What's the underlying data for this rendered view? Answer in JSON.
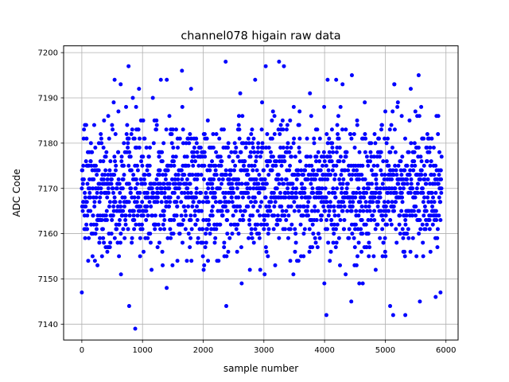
{
  "chart_data": {
    "type": "scatter",
    "title": "channel078 higain raw data",
    "xlabel": "sample number",
    "ylabel": "ADC Code",
    "xlim": [
      -300,
      6200
    ],
    "ylim": [
      7136.5,
      7201.5
    ],
    "x_ticks": [
      0,
      1000,
      2000,
      3000,
      4000,
      5000,
      6000
    ],
    "y_ticks": [
      7140,
      7150,
      7160,
      7170,
      7180,
      7190,
      7200
    ],
    "grid": true,
    "marker_color": "#0000ff",
    "series": [
      {
        "n_samples": 5930,
        "x_range": [
          0,
          5929
        ],
        "center": 7170,
        "typical_range": [
          7152,
          7188
        ],
        "outliers": [
          {
            "x": 880,
            "y": 7139
          },
          {
            "x": 780,
            "y": 7144
          },
          {
            "x": 2380,
            "y": 7144
          },
          {
            "x": 4030,
            "y": 7142
          },
          {
            "x": 5130,
            "y": 7142
          },
          {
            "x": 5330,
            "y": 7142
          },
          {
            "x": 5080,
            "y": 7144
          },
          {
            "x": 0,
            "y": 7147
          },
          {
            "x": 4440,
            "y": 7145
          },
          {
            "x": 5570,
            "y": 7145
          },
          {
            "x": 5830,
            "y": 7146
          },
          {
            "x": 5910,
            "y": 7147
          },
          {
            "x": 770,
            "y": 7197
          },
          {
            "x": 2370,
            "y": 7198
          },
          {
            "x": 3030,
            "y": 7197
          },
          {
            "x": 3250,
            "y": 7198
          },
          {
            "x": 3330,
            "y": 7197
          },
          {
            "x": 1650,
            "y": 7196
          },
          {
            "x": 4450,
            "y": 7195
          },
          {
            "x": 5550,
            "y": 7195
          },
          {
            "x": 540,
            "y": 7194
          },
          {
            "x": 1400,
            "y": 7194
          },
          {
            "x": 4050,
            "y": 7194
          },
          {
            "x": 640,
            "y": 7193
          },
          {
            "x": 5150,
            "y": 7193
          },
          {
            "x": 1800,
            "y": 7192
          },
          {
            "x": 5420,
            "y": 7192
          }
        ]
      }
    ]
  }
}
